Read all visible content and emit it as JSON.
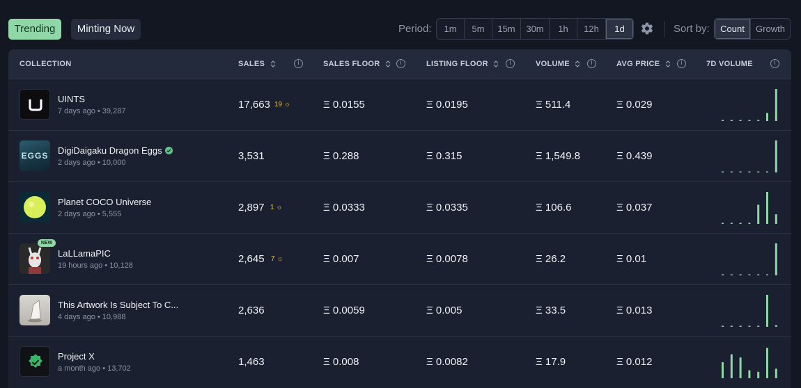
{
  "filters": {
    "trending_label": "Trending",
    "minting_label": "Minting Now",
    "period_label": "Period:",
    "periods": [
      "1m",
      "5m",
      "15m",
      "30m",
      "1h",
      "12h",
      "1d"
    ],
    "active_period": "1d",
    "sort_label": "Sort by:",
    "sort_options": [
      "Count",
      "Growth"
    ],
    "active_sort": "Count",
    "settings_icon": "gear-icon"
  },
  "columns": {
    "collection": "COLLECTION",
    "sales": "SALES",
    "sales_floor": "SALES FLOOR",
    "listing_floor": "LISTING FLOOR",
    "volume": "VOLUME",
    "avg_price": "AVG PRICE",
    "volume_7d": "7D VOLUME"
  },
  "rows": [
    {
      "name": "UINTS",
      "age": "7 days ago",
      "supply": "39,287",
      "sales": "17,663",
      "minted": "19",
      "sales_floor": "Ξ 0.0155",
      "listing_floor": "Ξ 0.0195",
      "volume": "Ξ 511.4",
      "avg_price": "Ξ 0.029",
      "spark": [
        0.02,
        0.02,
        0.02,
        0.02,
        0.02,
        0.25,
        1.0
      ]
    },
    {
      "name": "DigiDaigaku Dragon Eggs",
      "verified": true,
      "thumb_text": "EGGS",
      "age": "2 days ago",
      "supply": "10,000",
      "sales": "3,531",
      "minted": "",
      "sales_floor": "Ξ 0.288",
      "listing_floor": "Ξ 0.315",
      "volume": "Ξ 1,549.8",
      "avg_price": "Ξ 0.439",
      "spark": [
        0.02,
        0.02,
        0.02,
        0.02,
        0.02,
        0.02,
        1.0
      ]
    },
    {
      "name": "Planet COCO Universe",
      "age": "2 days ago",
      "supply": "5,555",
      "sales": "2,897",
      "minted": "1",
      "sales_floor": "Ξ 0.0333",
      "listing_floor": "Ξ 0.0335",
      "volume": "Ξ 106.6",
      "avg_price": "Ξ 0.037",
      "spark": [
        0.02,
        0.02,
        0.02,
        0.02,
        0.6,
        1.0,
        0.3
      ]
    },
    {
      "name": "LaLLamaPIC",
      "badge": "NEW",
      "age": "19 hours ago",
      "supply": "10,128",
      "sales": "2,645",
      "minted": "7",
      "sales_floor": "Ξ 0.007",
      "listing_floor": "Ξ 0.0078",
      "volume": "Ξ 26.2",
      "avg_price": "Ξ 0.01",
      "spark": [
        0.02,
        0.02,
        0.02,
        0.02,
        0.02,
        0.02,
        1.0
      ]
    },
    {
      "name": "This Artwork Is Subject To C...",
      "age": "4 days ago",
      "supply": "10,988",
      "sales": "2,636",
      "minted": "",
      "sales_floor": "Ξ 0.0059",
      "listing_floor": "Ξ 0.005",
      "volume": "Ξ 33.5",
      "avg_price": "Ξ 0.013",
      "spark": [
        0.02,
        0.02,
        0.02,
        0.02,
        0.02,
        1.0,
        0.05
      ]
    },
    {
      "name": "Project X",
      "age": "a month ago",
      "supply": "13,702",
      "sales": "1,463",
      "minted": "",
      "sales_floor": "Ξ 0.008",
      "listing_floor": "Ξ 0.0082",
      "volume": "Ξ 17.9",
      "avg_price": "Ξ 0.012",
      "spark": [
        0.5,
        0.75,
        0.65,
        0.25,
        0.2,
        0.95,
        0.3
      ]
    }
  ],
  "colors": {
    "accent": "#8fd7a6",
    "minted": "#e6c25a",
    "spark": "#8fd7a6"
  }
}
